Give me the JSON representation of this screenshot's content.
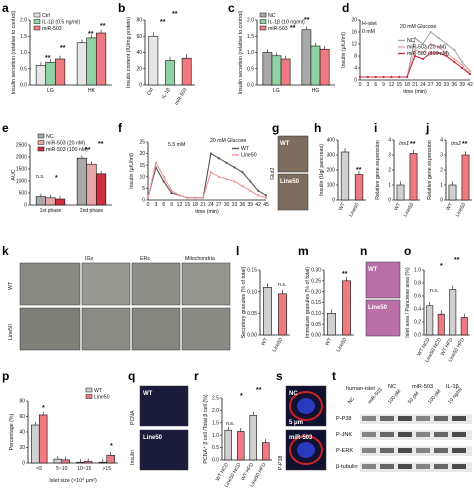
{
  "colors": {
    "ctrl": "#e6e6e6",
    "il1b": "#8fd3a5",
    "mir503": "#f07a82",
    "nc": "#a9a9a9",
    "mir20": "#e7a6a6",
    "mir100": "#cc2f3f",
    "wt": "#d0d0d0",
    "line50": "#f07a82",
    "wt_line": "#555555",
    "line50_line": "#f2959b"
  },
  "panels": {
    "a": {
      "label": "a",
      "ylabel": "Insulin secretion (relative to control)",
      "legend": [
        "Ctrl",
        "IL-1β (0.5 ng/ml)",
        "miR-503"
      ],
      "categories": [
        "LG",
        "HK"
      ],
      "yticks": [
        "0.0",
        "0.5",
        "1.0",
        "1.5",
        "2.0"
      ],
      "stars": [
        "**",
        "**",
        "**",
        "**",
        "**"
      ]
    },
    "b": {
      "label": "b",
      "ylabel": "Insulin content (IU/mg protein)",
      "categories": [
        "Ctrl",
        "IL-1β",
        "miR-503"
      ],
      "yticks": [
        "0",
        "20",
        "40",
        "60",
        "80"
      ],
      "stars": [
        "**",
        "**"
      ]
    },
    "c": {
      "label": "c",
      "ylabel": "Insulin secretion (relative to control)",
      "legend": [
        "NC",
        "IL-1β (10 ng/ml)",
        "miR-503"
      ],
      "categories": [
        "LG",
        "HG"
      ],
      "yticks": [
        "0.0",
        "0.5",
        "1.0",
        "1.5",
        "2.0"
      ],
      "stars": [
        "**",
        "**",
        "**",
        "**"
      ]
    },
    "d": {
      "label": "d",
      "ylabel": "Insulin (μIU/ml)",
      "xlabel": "time (min)",
      "inset": "H-islet",
      "glucose1": "0 mM",
      "glucose2": "20 mM Glucose",
      "legend": [
        "NC",
        "miR-503 (20 nM)",
        "miR-503 (100 nM)"
      ],
      "yticks": [
        "0",
        "4",
        "8",
        "12",
        "16",
        "20"
      ],
      "xticks": [
        "0",
        "3",
        "6",
        "9",
        "12",
        "15",
        "18",
        "21",
        "24",
        "27",
        "30",
        "33",
        "36",
        "39",
        "42"
      ]
    },
    "e": {
      "label": "e",
      "ylabel": "AUC",
      "legend": [
        "NC",
        "miR-503 (20 nM)",
        "miR-503 (100 nM)"
      ],
      "categories": [
        "1st phase",
        "2nd phase"
      ],
      "yticks": [
        "0",
        "500",
        "1000",
        "1500",
        "2000",
        "2500"
      ],
      "stars": [
        "n.s.",
        "*",
        "**",
        "**"
      ]
    },
    "f": {
      "label": "f",
      "ylabel": "Insulin (μIU/ml)",
      "xlabel": "time (min)",
      "glucose1": "5.5 mM",
      "glucose2": "20 mM Glucose",
      "legend": [
        "WT",
        "Line50"
      ],
      "yticks": [
        "0",
        "5",
        "10",
        "15",
        "20",
        "25"
      ],
      "xticks": [
        "0",
        "3",
        "6",
        "9",
        "12",
        "15",
        "18",
        "21",
        "24",
        "27",
        "30",
        "33",
        "36",
        "39",
        "42",
        "45"
      ]
    },
    "g": {
      "label": "g",
      "side": "Glut2",
      "top": "WT",
      "bottom": "Line50"
    },
    "h": {
      "label": "h",
      "ylabel": "Insulin (Ug/ pancreas)",
      "categories": [
        "WT",
        "Line50"
      ],
      "yticks": [
        "0",
        "100",
        "200",
        "300",
        "400"
      ],
      "stars": [
        "**"
      ]
    },
    "i": {
      "label": "i",
      "ylabel": "Relative gene expression",
      "title": "Ins1",
      "categories": [
        "WT",
        "Line50"
      ],
      "yticks": [
        "0",
        "1",
        "2",
        "3",
        "4"
      ],
      "stars": [
        "**"
      ]
    },
    "j": {
      "label": "j",
      "ylabel": "Relative gene expression",
      "title": "Ins2",
      "categories": [
        "WT",
        "Line50"
      ],
      "yticks": [
        "0",
        "1",
        "2",
        "3",
        "4"
      ],
      "stars": [
        "**"
      ]
    },
    "k": {
      "label": "k",
      "rows": [
        "WT",
        "Line50"
      ],
      "cols": [
        "IGs",
        "ERs",
        "Mitochondria"
      ]
    },
    "l": {
      "label": "l",
      "ylabel": "Secretory granules (% of total)",
      "categories": [
        "WT",
        "Line50"
      ],
      "yticks": [
        "0.00",
        "0.05",
        "0.10",
        "0.15"
      ],
      "stars": [
        "n.s."
      ]
    },
    "m": {
      "label": "m",
      "ylabel": "Immature granules (% of total)",
      "categories": [
        "WT",
        "Line50"
      ],
      "yticks": [
        "0.00",
        "0.05",
        "0.10",
        "0.15",
        "0.20",
        "0.25",
        "0.30"
      ],
      "stars": [
        "**"
      ]
    },
    "n": {
      "label": "n",
      "top": "WT",
      "bottom": "Line50"
    },
    "o": {
      "label": "o",
      "ylabel": "Islet area / Pancreas area (%)",
      "categories": [
        "WT NCD",
        "Line50 NCD",
        "WT HFD",
        "Line50 HFD"
      ],
      "yticks": [
        "0.0",
        "0.2",
        "0.4",
        "0.6",
        "0.8",
        "1.0"
      ],
      "stars": [
        "n.s.",
        "*",
        "**"
      ]
    },
    "p": {
      "label": "p",
      "ylabel": "Percentage (%)",
      "xlabel": "Islet size (×10⁴ μm²)",
      "legend": [
        "WT",
        "Line50"
      ],
      "categories": [
        "<5",
        "5~10",
        "10~15",
        ">15"
      ],
      "yticks": [
        "0",
        "20",
        "40",
        "60",
        "80"
      ],
      "stars": [
        "*",
        "*"
      ]
    },
    "q": {
      "label": "q",
      "side1": "PCNA",
      "side2": "Insulin",
      "top": "WT",
      "bottom": "Line50"
    },
    "r": {
      "label": "r",
      "ylabel": "PCNA⁺ β cell /Total β cell (%)",
      "categories": [
        "WT NCD",
        "Line50 NCD",
        "WT HFD",
        "Line50 HFD"
      ],
      "yticks": [
        "0.0",
        "0.5",
        "1.0",
        "1.5",
        "2.0",
        "2.5"
      ],
      "stars": [
        "n.s.",
        "*",
        "**"
      ]
    },
    "s": {
      "label": "s",
      "side": "P-P38",
      "side2": "Hoechst",
      "top": "NC",
      "bottom": "miR-503",
      "scale": "5 μm"
    },
    "t": {
      "label": "t",
      "group1": "human-islet",
      "group2": "NC",
      "group3": "miR-503",
      "group4": "IL-1β",
      "lanes": [
        "NC",
        "miR-503",
        "100 pM",
        "50 pM",
        "100 pM",
        "10 ng/ml"
      ],
      "rows": [
        "P-P38",
        "P-JNK",
        "P-ERK",
        "β-tubulin"
      ]
    }
  },
  "chart_data": [
    {
      "type": "bar",
      "title": "",
      "categories": [
        "LG",
        "HK"
      ],
      "series": [
        {
          "name": "Ctrl",
          "values": [
            0.6,
            1.3
          ]
        },
        {
          "name": "IL-1β (0.5 ng/ml)",
          "values": [
            0.7,
            1.45
          ]
        },
        {
          "name": "miR-503",
          "values": [
            0.8,
            1.6
          ]
        }
      ],
      "ylim": [
        0,
        2.0
      ],
      "ylabel": "Insulin secretion (relative to control)"
    },
    {
      "type": "bar",
      "categories": [
        "Ctrl",
        "IL-1β",
        "miR-503"
      ],
      "values": [
        60,
        30,
        33
      ],
      "ylim": [
        0,
        80
      ],
      "ylabel": "Insulin content (IU/mg protein)"
    },
    {
      "type": "bar",
      "categories": [
        "LG",
        "HG"
      ],
      "series": [
        {
          "name": "NC",
          "values": [
            1.0,
            1.7
          ]
        },
        {
          "name": "IL-1β (10 ng/ml)",
          "values": [
            0.9,
            1.2
          ]
        },
        {
          "name": "miR-503",
          "values": [
            0.8,
            1.1
          ]
        }
      ],
      "ylim": [
        0,
        2.0
      ],
      "ylabel": "Insulin secretion (relative to control)"
    },
    {
      "type": "line",
      "x": [
        0,
        3,
        6,
        9,
        12,
        15,
        18,
        21,
        24,
        27,
        30,
        33,
        36,
        39,
        42
      ],
      "series": [
        {
          "name": "NC",
          "values": [
            1,
            1,
            1,
            1,
            1,
            1,
            1,
            14,
            12,
            16,
            14,
            12,
            10,
            6,
            3
          ]
        },
        {
          "name": "miR-503 (20 nM)",
          "values": [
            1,
            1,
            1,
            1,
            1,
            1,
            1,
            10,
            9,
            12,
            11,
            9,
            7,
            5,
            2
          ]
        },
        {
          "name": "miR-503 (100 nM)",
          "values": [
            1,
            1,
            1,
            1,
            1,
            1,
            1,
            8,
            7,
            9,
            9,
            8,
            6,
            4,
            2
          ]
        }
      ],
      "ylim": [
        0,
        20
      ],
      "xlabel": "time (min)",
      "ylabel": "Insulin (μIU/ml)"
    },
    {
      "type": "bar",
      "categories": [
        "1st phase",
        "2nd phase"
      ],
      "series": [
        {
          "name": "NC",
          "values": [
            350,
            1950
          ]
        },
        {
          "name": "miR-503 (20 nM)",
          "values": [
            300,
            1700
          ]
        },
        {
          "name": "miR-503 (100 nM)",
          "values": [
            250,
            1300
          ]
        }
      ],
      "ylim": [
        0,
        2500
      ],
      "ylabel": "AUC"
    },
    {
      "type": "line",
      "x": [
        0,
        3,
        6,
        9,
        12,
        15,
        18,
        21,
        24,
        27,
        30,
        33,
        36,
        39,
        42,
        45
      ],
      "series": [
        {
          "name": "WT",
          "values": [
            1,
            14,
            8,
            3,
            2,
            1,
            1,
            1,
            20,
            18,
            16,
            14,
            12,
            8,
            4,
            2
          ]
        },
        {
          "name": "Line50",
          "values": [
            1,
            16,
            10,
            4,
            2,
            1,
            1,
            1,
            12,
            10,
            9,
            8,
            6,
            4,
            2,
            1
          ]
        }
      ],
      "ylim": [
        0,
        25
      ],
      "xlabel": "time (min)",
      "ylabel": "Insulin (μIU/ml)"
    },
    {
      "type": "bar",
      "categories": [
        "WT",
        "Line50"
      ],
      "values": [
        320,
        170
      ],
      "ylim": [
        0,
        400
      ],
      "ylabel": "Insulin (Ug/ pancreas)"
    },
    {
      "type": "bar",
      "categories": [
        "WT",
        "Line50"
      ],
      "values": [
        1.0,
        3.1
      ],
      "ylim": [
        0,
        4
      ],
      "ylabel": "Relative gene expression",
      "title": "Ins1"
    },
    {
      "type": "bar",
      "categories": [
        "WT",
        "Line50"
      ],
      "values": [
        1.0,
        3.0
      ],
      "ylim": [
        0,
        4
      ],
      "ylabel": "Relative gene expression",
      "title": "Ins2"
    },
    {
      "type": "bar",
      "categories": [
        "WT",
        "Line50"
      ],
      "values": [
        0.11,
        0.095
      ],
      "ylim": [
        0,
        0.15
      ],
      "ylabel": "Secretory granules (% of total)"
    },
    {
      "type": "bar",
      "categories": [
        "WT",
        "Line50"
      ],
      "values": [
        0.1,
        0.25
      ],
      "ylim": [
        0,
        0.3
      ],
      "ylabel": "Immature granules (% of total)"
    },
    {
      "type": "bar",
      "categories": [
        "WT NCD",
        "Line50 NCD",
        "WT HFD",
        "Line50 HFD"
      ],
      "values": [
        0.45,
        0.32,
        0.7,
        0.27
      ],
      "ylim": [
        0,
        1.0
      ],
      "ylabel": "Islet area / Pancreas area (%)"
    },
    {
      "type": "bar",
      "categories": [
        "<5",
        "5~10",
        "10~15",
        ">15"
      ],
      "series": [
        {
          "name": "WT",
          "values": [
            49,
            5,
            1,
            1
          ]
        },
        {
          "name": "Line50",
          "values": [
            62,
            4,
            2,
            10
          ]
        }
      ],
      "ylim": [
        0,
        80
      ],
      "xlabel": "Islet size (×10⁴ μm²)",
      "ylabel": "Percentage (%)"
    },
    {
      "type": "bar",
      "categories": [
        "WT NCD",
        "Line50 NCD",
        "WT HFD",
        "Line50 HFD"
      ],
      "values": [
        1.2,
        1.15,
        1.8,
        0.7
      ],
      "ylim": [
        0,
        2.5
      ],
      "ylabel": "PCNA⁺ β cell /Total β cell (%)"
    }
  ]
}
